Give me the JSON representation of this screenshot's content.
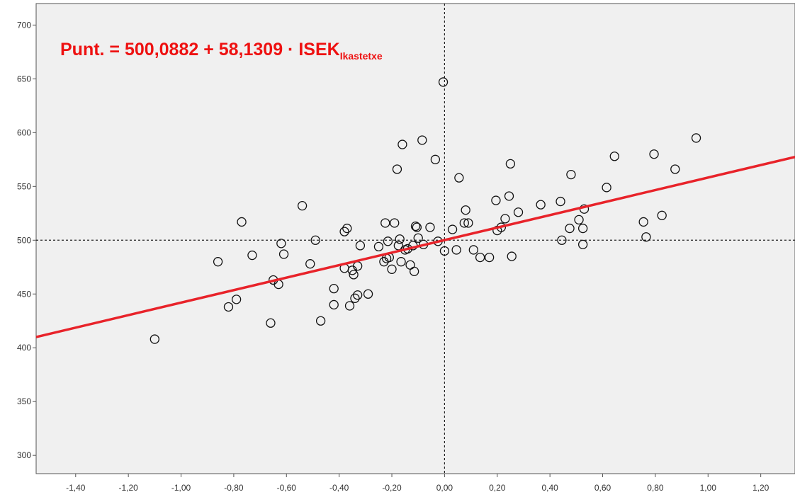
{
  "chart_data": {
    "type": "scatter",
    "equation": {
      "main": "Punt. = 500,0882 + 58,1309 · ISEK",
      "subscript": "Ikastetxe"
    },
    "xlim": [
      -1.55,
      1.33
    ],
    "ylim": [
      283,
      720
    ],
    "x_ticks": [
      {
        "value": -1.4,
        "label": "-1,40"
      },
      {
        "value": -1.2,
        "label": "-1,20"
      },
      {
        "value": -1.0,
        "label": "-1,00"
      },
      {
        "value": -0.8,
        "label": "-0,80"
      },
      {
        "value": -0.6,
        "label": "-0,60"
      },
      {
        "value": -0.4,
        "label": "-0,40"
      },
      {
        "value": -0.2,
        "label": "-0,20"
      },
      {
        "value": 0.0,
        "label": "0,00"
      },
      {
        "value": 0.2,
        "label": "0,20"
      },
      {
        "value": 0.4,
        "label": "0,40"
      },
      {
        "value": 0.6,
        "label": "0,60"
      },
      {
        "value": 0.8,
        "label": "0,80"
      },
      {
        "value": 1.0,
        "label": "1,00"
      },
      {
        "value": 1.2,
        "label": "1,20"
      }
    ],
    "y_ticks": [
      {
        "value": 300,
        "label": "300"
      },
      {
        "value": 350,
        "label": "350"
      },
      {
        "value": 400,
        "label": "400"
      },
      {
        "value": 450,
        "label": "450"
      },
      {
        "value": 500,
        "label": "500"
      },
      {
        "value": 550,
        "label": "550"
      },
      {
        "value": 600,
        "label": "600"
      },
      {
        "value": 650,
        "label": "650"
      },
      {
        "value": 700,
        "label": "700"
      }
    ],
    "reference_lines": {
      "x": 0.0,
      "y": 500
    },
    "regression": {
      "intercept": 500.0882,
      "slope": 58.1309
    },
    "points": [
      [
        -1.1,
        408
      ],
      [
        -0.86,
        480
      ],
      [
        -0.82,
        438
      ],
      [
        -0.79,
        445
      ],
      [
        -0.77,
        517
      ],
      [
        -0.73,
        486
      ],
      [
        -0.66,
        423
      ],
      [
        -0.65,
        463
      ],
      [
        -0.63,
        459
      ],
      [
        -0.62,
        497
      ],
      [
        -0.61,
        487
      ],
      [
        -0.54,
        532
      ],
      [
        -0.51,
        478
      ],
      [
        -0.49,
        500
      ],
      [
        -0.47,
        425
      ],
      [
        -0.42,
        440
      ],
      [
        -0.42,
        455
      ],
      [
        -0.38,
        474
      ],
      [
        -0.38,
        508
      ],
      [
        -0.37,
        511
      ],
      [
        -0.36,
        439
      ],
      [
        -0.35,
        472
      ],
      [
        -0.345,
        468
      ],
      [
        -0.34,
        446
      ],
      [
        -0.33,
        449
      ],
      [
        -0.33,
        476
      ],
      [
        -0.32,
        495
      ],
      [
        -0.29,
        450
      ],
      [
        -0.25,
        494
      ],
      [
        -0.23,
        480
      ],
      [
        -0.225,
        516
      ],
      [
        -0.22,
        483
      ],
      [
        -0.215,
        499
      ],
      [
        -0.21,
        484
      ],
      [
        -0.2,
        473
      ],
      [
        -0.19,
        516
      ],
      [
        -0.18,
        566
      ],
      [
        -0.175,
        495
      ],
      [
        -0.17,
        501
      ],
      [
        -0.165,
        480
      ],
      [
        -0.16,
        589
      ],
      [
        -0.15,
        491
      ],
      [
        -0.14,
        492
      ],
      [
        -0.13,
        477
      ],
      [
        -0.12,
        495
      ],
      [
        -0.115,
        471
      ],
      [
        -0.11,
        513
      ],
      [
        -0.105,
        512
      ],
      [
        -0.1,
        502
      ],
      [
        -0.085,
        593
      ],
      [
        -0.08,
        496
      ],
      [
        -0.055,
        512
      ],
      [
        -0.035,
        575
      ],
      [
        -0.025,
        499
      ],
      [
        -0.005,
        647
      ],
      [
        0.0,
        490
      ],
      [
        0.03,
        510
      ],
      [
        0.045,
        491
      ],
      [
        0.055,
        558
      ],
      [
        0.075,
        516
      ],
      [
        0.08,
        528
      ],
      [
        0.09,
        516
      ],
      [
        0.11,
        491
      ],
      [
        0.135,
        484
      ],
      [
        0.17,
        484
      ],
      [
        0.195,
        537
      ],
      [
        0.2,
        509
      ],
      [
        0.215,
        512
      ],
      [
        0.23,
        520
      ],
      [
        0.245,
        541
      ],
      [
        0.25,
        571
      ],
      [
        0.255,
        485
      ],
      [
        0.28,
        526
      ],
      [
        0.365,
        533
      ],
      [
        0.44,
        536
      ],
      [
        0.445,
        500
      ],
      [
        0.475,
        511
      ],
      [
        0.48,
        561
      ],
      [
        0.51,
        519
      ],
      [
        0.525,
        511
      ],
      [
        0.525,
        496
      ],
      [
        0.53,
        529
      ],
      [
        0.615,
        549
      ],
      [
        0.645,
        578
      ],
      [
        0.755,
        517
      ],
      [
        0.765,
        503
      ],
      [
        0.795,
        580
      ],
      [
        0.825,
        523
      ],
      [
        0.875,
        566
      ],
      [
        0.955,
        595
      ]
    ]
  }
}
